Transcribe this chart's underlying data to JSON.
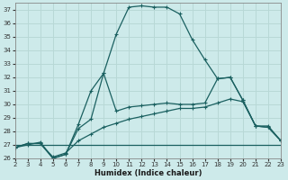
{
  "xlabel": "Humidex (Indice chaleur)",
  "bg_color": "#cdeaea",
  "grid_color": "#b8d8d6",
  "line_color": "#1a6060",
  "xlim": [
    2,
    23
  ],
  "ylim": [
    26,
    37.5
  ],
  "xticks": [
    2,
    3,
    4,
    5,
    6,
    7,
    8,
    9,
    10,
    11,
    12,
    13,
    14,
    15,
    16,
    17,
    18,
    19,
    20,
    21,
    22,
    23
  ],
  "yticks": [
    26,
    27,
    28,
    29,
    30,
    31,
    32,
    33,
    34,
    35,
    36,
    37
  ],
  "series": [
    {
      "x": [
        2,
        3,
        4,
        5,
        6,
        7,
        8,
        9,
        10,
        11,
        12,
        13,
        14,
        15,
        16,
        17,
        18,
        19,
        20,
        21,
        22,
        23
      ],
      "y": [
        26.8,
        27.1,
        27.1,
        26.0,
        26.3,
        28.2,
        28.9,
        32.3,
        35.2,
        37.2,
        37.3,
        37.2,
        37.2,
        36.7,
        34.8,
        33.3,
        31.9,
        32.0,
        30.3,
        28.4,
        28.3,
        27.3
      ]
    },
    {
      "x": [
        2,
        3,
        4,
        5,
        6,
        7,
        8,
        9,
        10,
        11,
        12,
        13,
        14,
        15,
        16,
        17,
        18,
        19,
        20,
        21,
        22,
        23
      ],
      "y": [
        26.8,
        27.0,
        27.2,
        26.0,
        26.3,
        28.5,
        31.0,
        32.3,
        29.5,
        29.8,
        29.9,
        30.0,
        30.1,
        30.0,
        30.0,
        30.1,
        31.9,
        32.0,
        30.3,
        28.4,
        28.3,
        27.3
      ]
    },
    {
      "x": [
        2,
        3,
        4,
        5,
        6,
        7,
        8,
        9,
        10,
        11,
        12,
        13,
        14,
        15,
        16,
        17,
        18,
        19,
        20,
        21,
        22,
        23
      ],
      "y": [
        26.8,
        27.1,
        27.1,
        26.1,
        26.4,
        27.3,
        27.8,
        28.3,
        28.6,
        28.9,
        29.1,
        29.3,
        29.5,
        29.7,
        29.7,
        29.8,
        30.1,
        30.4,
        30.2,
        28.4,
        28.4,
        27.3
      ]
    },
    {
      "x": [
        2,
        23
      ],
      "y": [
        27.0,
        27.0
      ]
    }
  ]
}
